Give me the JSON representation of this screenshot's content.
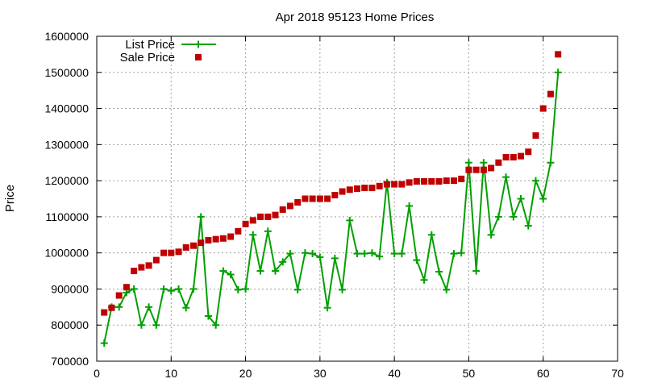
{
  "chart_data": {
    "type": "line",
    "title": "Apr 2018 95123 Home Prices",
    "xlabel": "",
    "ylabel": "Price",
    "xlim": [
      0,
      70
    ],
    "ylim": [
      700000,
      1600000
    ],
    "xticks": [
      "0",
      "10",
      "20",
      "30",
      "40",
      "50",
      "60",
      "70"
    ],
    "yticks": [
      "700000",
      "800000",
      "900000",
      "1000000",
      "1100000",
      "1200000",
      "1300000",
      "1400000",
      "1500000",
      "1600000"
    ],
    "grid": true,
    "legend_position": "top-left",
    "series": [
      {
        "name": "List Price",
        "style": "line-points",
        "color": "#00a000",
        "x": [
          1,
          2,
          3,
          4,
          5,
          6,
          7,
          8,
          9,
          10,
          11,
          12,
          13,
          14,
          15,
          16,
          17,
          18,
          19,
          20,
          21,
          22,
          23,
          24,
          25,
          26,
          27,
          28,
          29,
          30,
          31,
          32,
          33,
          34,
          35,
          36,
          37,
          38,
          39,
          40,
          41,
          42,
          43,
          44,
          45,
          46,
          47,
          48,
          49,
          50,
          51,
          52,
          53,
          54,
          55,
          56,
          57,
          58,
          59,
          60,
          61,
          62
        ],
        "y": [
          750000,
          850000,
          850000,
          890000,
          900000,
          800000,
          850000,
          800000,
          900000,
          895000,
          900000,
          848000,
          900000,
          1100000,
          825000,
          800000,
          950000,
          940000,
          898000,
          900000,
          1050000,
          950000,
          1060000,
          950000,
          975000,
          998000,
          898000,
          1000000,
          998000,
          988000,
          848000,
          985000,
          898000,
          1090000,
          998000,
          998000,
          1000000,
          990000,
          1195000,
          998000,
          998000,
          1130000,
          980000,
          925000,
          1050000,
          948000,
          898000,
          998000,
          1000000,
          1250000,
          950000,
          1250000,
          1050000,
          1100000,
          1210000,
          1100000,
          1150000,
          1075000,
          1200000,
          1150000,
          1250000,
          1500000
        ]
      },
      {
        "name": "Sale Price",
        "style": "points",
        "color": "#c00000",
        "x": [
          1,
          2,
          3,
          4,
          5,
          6,
          7,
          8,
          9,
          10,
          11,
          12,
          13,
          14,
          15,
          16,
          17,
          18,
          19,
          20,
          21,
          22,
          23,
          24,
          25,
          26,
          27,
          28,
          29,
          30,
          31,
          32,
          33,
          34,
          35,
          36,
          37,
          38,
          39,
          40,
          41,
          42,
          43,
          44,
          45,
          46,
          47,
          48,
          49,
          50,
          51,
          52,
          53,
          54,
          55,
          56,
          57,
          58,
          59,
          60,
          61,
          62
        ],
        "y": [
          835000,
          848000,
          882000,
          905000,
          950000,
          960000,
          965000,
          980000,
          1000000,
          1000000,
          1003000,
          1015000,
          1020000,
          1028000,
          1035000,
          1038000,
          1040000,
          1045000,
          1060000,
          1080000,
          1090000,
          1100000,
          1100000,
          1105000,
          1120000,
          1130000,
          1140000,
          1150000,
          1150000,
          1150000,
          1150000,
          1160000,
          1170000,
          1175000,
          1178000,
          1180000,
          1180000,
          1185000,
          1190000,
          1190000,
          1190000,
          1195000,
          1198000,
          1198000,
          1198000,
          1198000,
          1200000,
          1200000,
          1205000,
          1230000,
          1230000,
          1230000,
          1235000,
          1250000,
          1265000,
          1265000,
          1268000,
          1280000,
          1325000,
          1400000,
          1440000,
          1550000
        ]
      }
    ]
  }
}
